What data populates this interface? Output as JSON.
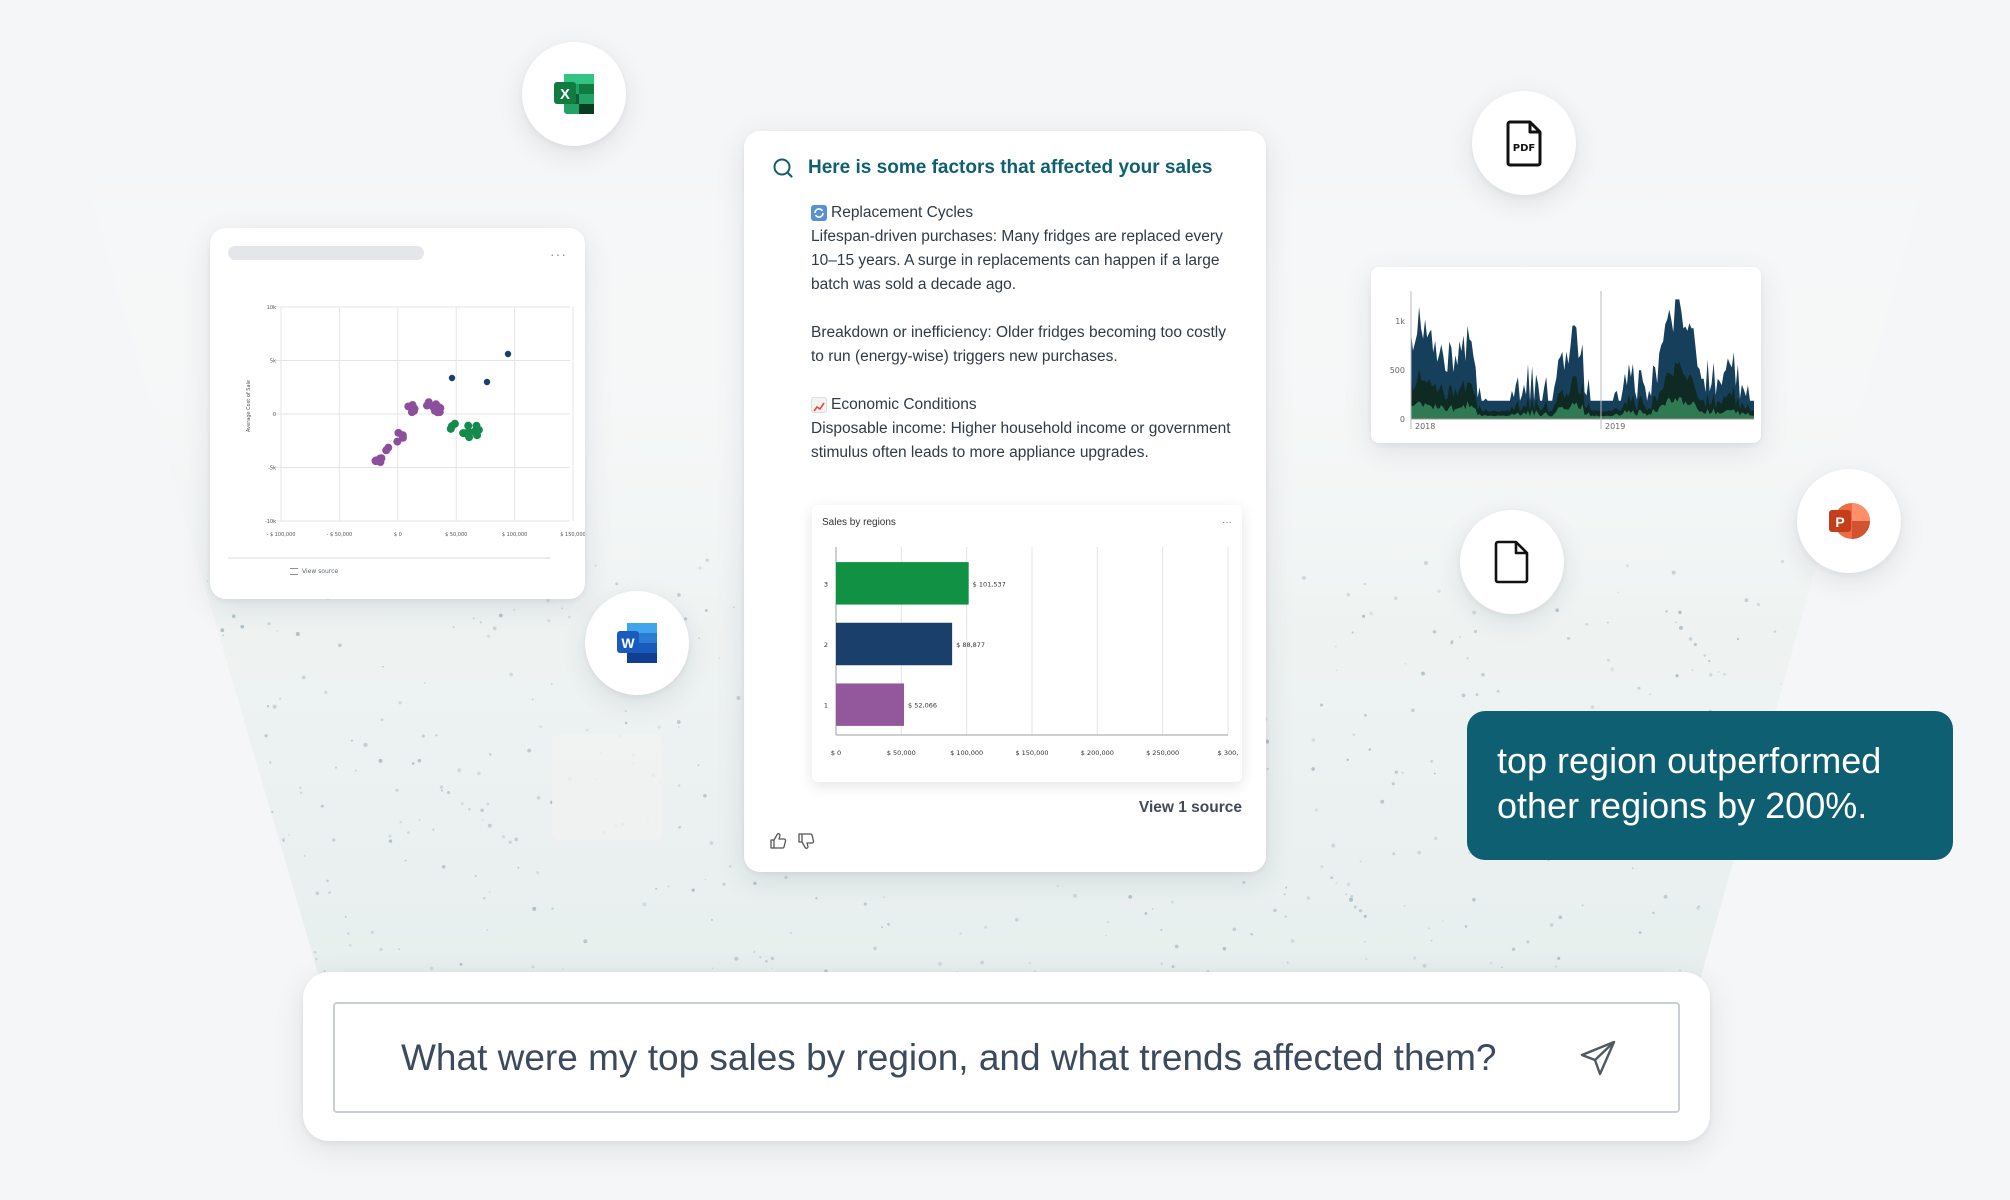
{
  "chat": {
    "title": "Here is some factors that affected your sales",
    "section1_title": "Replacement Cycles",
    "section1_p1": "Lifespan-driven purchases: Many fridges are replaced every 10–15 years. A surge in replacements can happen if a large batch was sold a decade ago.",
    "section1_p2": "Breakdown or inefficiency: Older fridges becoming too costly to run (energy-wise) triggers new purchases.",
    "section2_title": "Economic Conditions",
    "section2_p1": "Disposable income: Higher household income or government stimulus often leads to more appliance upgrades.",
    "view_source": "View 1 source",
    "icons": [
      "search-icon",
      "refresh-emoji-icon",
      "chart-increasing-emoji-icon",
      "thumbs-up-icon",
      "thumbs-down-icon"
    ]
  },
  "callout": {
    "text": "top region outperformed other regions by 200%."
  },
  "search": {
    "query": "What were my top sales by region, and what trends affected them?",
    "icon": "send-icon"
  },
  "scatter": {
    "ylabel": "Average Cost of Sale",
    "y_ticks": [
      "10k",
      "5k",
      "0",
      "-5k",
      "-10k"
    ],
    "x_ticks": [
      "- $ 100,000",
      "- $ 50,000",
      "$ 0",
      "$ 50,000",
      "$ 100,000",
      "$ 150,000"
    ],
    "view_source": "View source",
    "more": "···"
  },
  "area": {
    "y_ticks": [
      "1k",
      "500",
      "0"
    ],
    "x_ticks": [
      "2018",
      "2019"
    ]
  },
  "file_icons": [
    "excel-icon",
    "word-icon",
    "pdf-icon",
    "document-icon",
    "powerpoint-icon"
  ],
  "chart_data": {
    "type": "bar",
    "title": "Sales by regions",
    "orientation": "horizontal",
    "categories": [
      "3",
      "2",
      "1"
    ],
    "values": [
      101537,
      88877,
      52066
    ],
    "value_labels": [
      "$ 101,537",
      "$ 88,877",
      "$ 52,066"
    ],
    "colors": [
      "#109144",
      "#1b3f6b",
      "#93579c"
    ],
    "x_ticks": [
      "$ 0",
      "$ 50,000",
      "$ 100,000",
      "$ 150,000",
      "$ 200,000",
      "$ 250,000",
      "$ 300,"
    ],
    "xlim": [
      0,
      300000
    ],
    "grid": true,
    "more": "···"
  }
}
